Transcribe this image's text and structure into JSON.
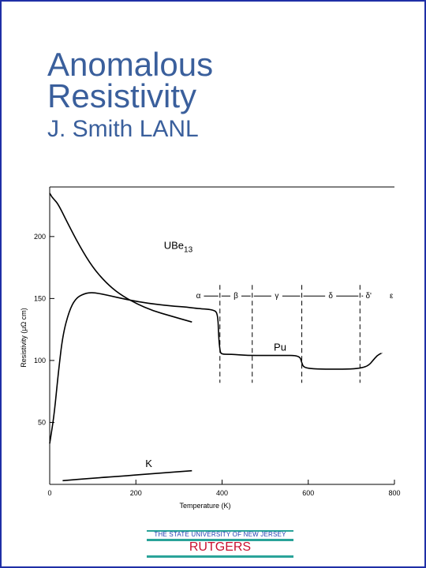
{
  "slide": {
    "title_line1": "Anomalous",
    "title_line2": "Resistivity",
    "subtitle": "J. Smith LANL"
  },
  "footer": {
    "university": "THE STATE UNIVERSITY OF NEW JERSEY",
    "brand": "RUTGERS"
  },
  "colors": {
    "frame": "#1f2fa6",
    "title": "#3a5f9c",
    "footer_teal": "#2aa399",
    "footer_text": "#1e3fb0",
    "brand_red": "#c8102e"
  },
  "chart_data": {
    "type": "line",
    "xlabel": "Temperature (K)",
    "ylabel": "Resistivity (μΩ cm)",
    "xlim": [
      0,
      800
    ],
    "ylim": [
      0,
      240
    ],
    "x_ticks": [
      0,
      200,
      400,
      600,
      800
    ],
    "y_ticks": [
      50,
      100,
      150,
      200
    ],
    "grid": false,
    "series": [
      {
        "name": "UBe13",
        "x": [
          0,
          5,
          10,
          20,
          40,
          70,
          100,
          130,
          160,
          200,
          240,
          280,
          330
        ],
        "y": [
          235,
          232,
          230,
          226,
          212,
          192,
          175,
          163,
          154,
          146,
          140,
          136,
          131
        ]
      },
      {
        "name": "Pu",
        "x": [
          0,
          10,
          20,
          30,
          45,
          60,
          80,
          100,
          130,
          180,
          230,
          280,
          320,
          340,
          380,
          390,
          392,
          395,
          398,
          420,
          460,
          500,
          540,
          580,
          585,
          590,
          620,
          660,
          700,
          725,
          740,
          750,
          760,
          770
        ],
        "y": [
          33,
          55,
          90,
          120,
          140,
          150,
          154,
          155,
          153,
          149,
          146,
          144,
          143,
          142,
          141,
          138,
          120,
          108,
          105,
          105,
          104,
          104,
          104,
          104,
          98,
          94,
          93,
          93,
          93,
          94,
          96,
          100,
          104,
          106
        ]
      },
      {
        "name": "K",
        "x": [
          30,
          100,
          180,
          250,
          330
        ],
        "y": [
          3,
          5,
          7,
          9,
          11
        ]
      }
    ],
    "phase_boundaries": [
      395,
      470,
      585,
      720
    ],
    "phase_labels": [
      {
        "text": "α",
        "x": 345
      },
      {
        "text": "β",
        "x": 432
      },
      {
        "text": "γ",
        "x": 527
      },
      {
        "text": "δ",
        "x": 652
      },
      {
        "text": "δ'",
        "x": 740
      },
      {
        "text": "ε",
        "x": 793
      }
    ],
    "phase_row_y": 152,
    "series_labels": [
      {
        "text": "UBe",
        "sub": "13",
        "x": 265,
        "y": 190
      },
      {
        "text": "Pu",
        "x": 520,
        "y": 108
      },
      {
        "text": "K",
        "x": 222,
        "y": 14
      }
    ]
  }
}
